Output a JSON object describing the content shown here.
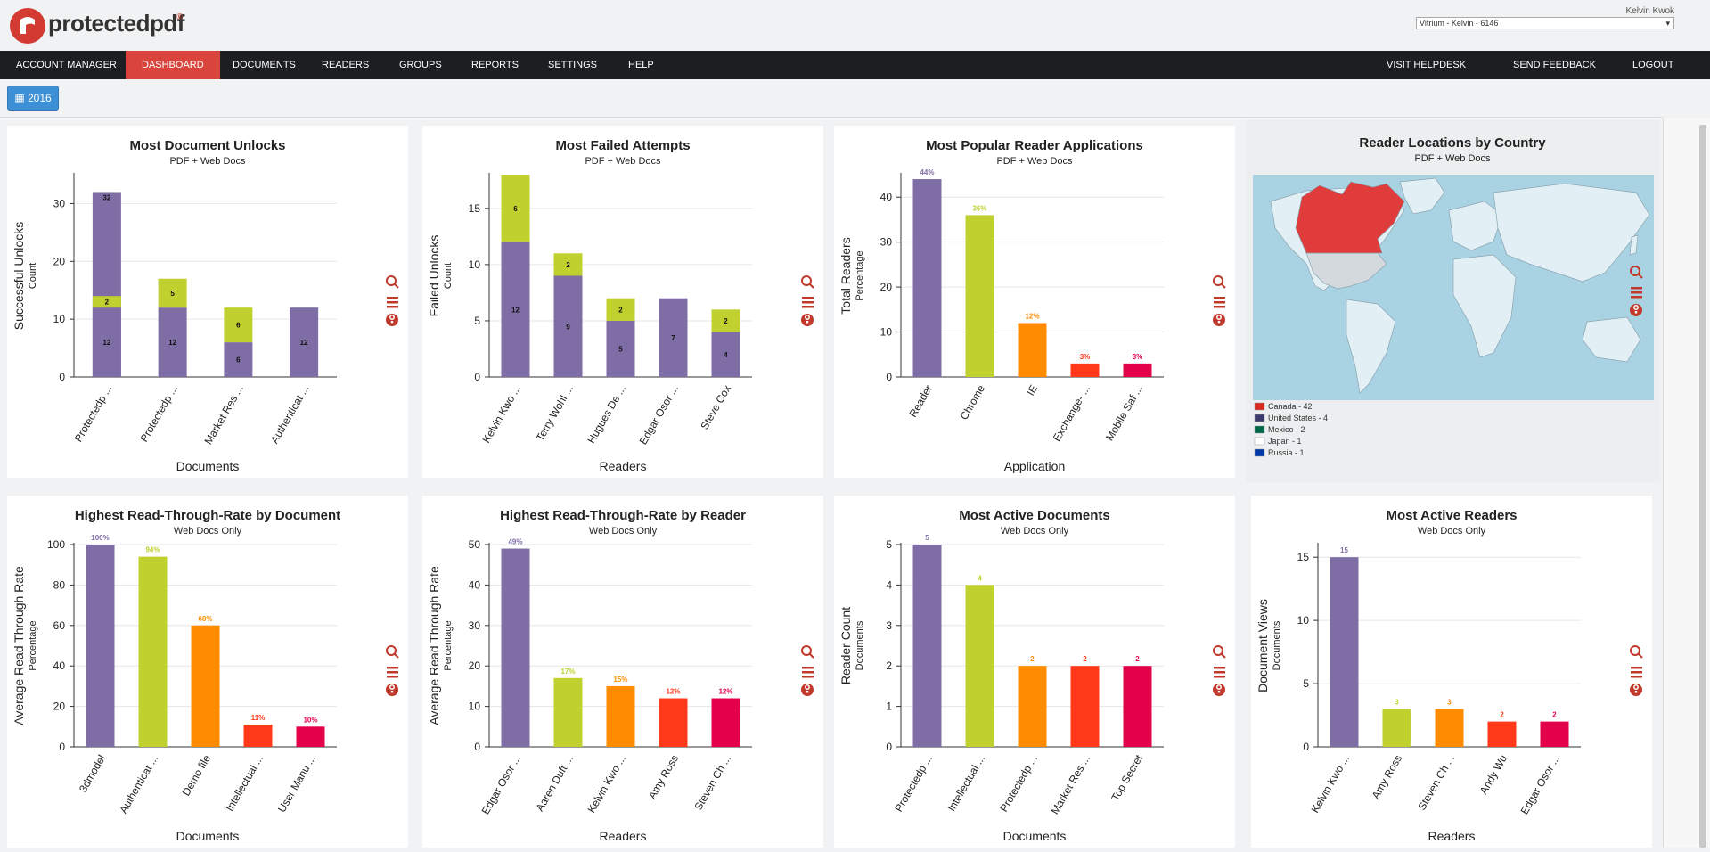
{
  "header": {
    "logo": "protectedpdf",
    "logo_mark": "®",
    "user": "Kelvin Kwok",
    "account": "Vitrium - Kelvin - 6146"
  },
  "nav": [
    "ACCOUNT MANAGER",
    "DASHBOARD",
    "DOCUMENTS",
    "READERS",
    "GROUPS",
    "REPORTS",
    "SETTINGS",
    "HELP"
  ],
  "nav_active": 1,
  "nav_right": [
    "VISIT HELPDESK",
    "SEND FEEDBACK",
    "LOGOUT"
  ],
  "year_button": "2016",
  "map": {
    "title": "Reader Locations by Country",
    "subtitle": "PDF + Web Docs",
    "legend": [
      "Canada - 42",
      "United States - 4",
      "Mexico - 2",
      "Japan - 1",
      "Russia - 1"
    ]
  },
  "chart_data": [
    {
      "type": "bar",
      "stacked": true,
      "title": "Most Document Unlocks",
      "subtitle": "PDF + Web Docs",
      "y_label": "Successful Unlocks",
      "y_sublabel": "Count",
      "x_label": "Documents",
      "categories": [
        "Protectedp ...",
        "Protectedp ...",
        "Market Res ...",
        "Authenticat ..."
      ],
      "series": [
        {
          "color": "#7f6ea6",
          "stack": false,
          "values": [
            32,
            null,
            null,
            null
          ]
        },
        {
          "color": "#7f6ea6",
          "values": [
            12,
            12,
            6,
            12
          ]
        },
        {
          "color": "#bfd02f",
          "values": [
            2,
            5,
            6,
            null
          ]
        }
      ],
      "ylim": [
        0,
        35
      ],
      "yticks": [
        0,
        10,
        20,
        30
      ],
      "grid": true
    },
    {
      "type": "bar",
      "stacked": true,
      "title": "Most Failed Attempts",
      "subtitle": "PDF + Web Docs",
      "y_label": "Failed Unlocks",
      "y_sublabel": "Count",
      "x_label": "Readers",
      "categories": [
        "Kelvin Kwo ...",
        "Terry Wohl ...",
        "Hugues De ...",
        "Edgar Osor ...",
        "Steve Cox"
      ],
      "series": [
        {
          "color": "#7f6ea6",
          "values": [
            12,
            9,
            5,
            7,
            4
          ]
        },
        {
          "color": "#bfd02f",
          "values": [
            6,
            2,
            2,
            null,
            2
          ]
        }
      ],
      "ylim": [
        0,
        18
      ],
      "yticks": [
        0,
        5,
        10,
        15
      ],
      "grid": true
    },
    {
      "type": "bar",
      "title": "Most Popular Reader Applications",
      "subtitle": "PDF + Web Docs",
      "y_label": "Total Readers",
      "y_sublabel": "Percentage",
      "x_label": "Application",
      "categories": [
        "Reader",
        "Chrome",
        "IE",
        "Exchange- ...",
        "Mobile Saf ..."
      ],
      "values": [
        44,
        36,
        12,
        3,
        3
      ],
      "value_labels": [
        "44%",
        "36%",
        "12%",
        "3%",
        "3%"
      ],
      "colors": [
        "#7f6ea6",
        "#bfd02f",
        "#ff8c00",
        "#ff3a1a",
        "#e5004a"
      ],
      "ylim": [
        0,
        45
      ],
      "yticks": [
        0,
        10,
        20,
        30,
        40
      ],
      "grid": true
    },
    {
      "type": "bar",
      "title": "Highest Read-Through-Rate by Document",
      "subtitle": "Web Docs Only",
      "y_label": "Average Read Through Rate",
      "y_sublabel": "Percentage",
      "x_label": "Documents",
      "categories": [
        "3dmodel",
        "Authenticat ...",
        "Demo file",
        "Intellectual ...",
        "User Manu ..."
      ],
      "values": [
        100,
        94,
        60,
        11,
        10
      ],
      "value_labels": [
        "100%",
        "94%",
        "60%",
        "11%",
        "10%"
      ],
      "colors": [
        "#7f6ea6",
        "#bfd02f",
        "#ff8c00",
        "#ff3a1a",
        "#e5004a"
      ],
      "ylim": [
        0,
        100
      ],
      "yticks": [
        0,
        20,
        40,
        60,
        80,
        100
      ],
      "grid": true
    },
    {
      "type": "bar",
      "title": "Highest Read-Through-Rate by Reader",
      "subtitle": "Web Docs Only",
      "y_label": "Average Read Through Rate",
      "y_sublabel": "Percentage",
      "x_label": "Readers",
      "categories": [
        "Edgar Osor ...",
        "Aaren Duft ...",
        "Kelvin Kwo ...",
        "Amy Ross",
        "Steven Ch ..."
      ],
      "values": [
        49,
        17,
        15,
        12,
        12
      ],
      "value_labels": [
        "49%",
        "17%",
        "15%",
        "12%",
        "12%"
      ],
      "colors": [
        "#7f6ea6",
        "#bfd02f",
        "#ff8c00",
        "#ff3a1a",
        "#e5004a"
      ],
      "ylim": [
        0,
        50
      ],
      "yticks": [
        0,
        10,
        20,
        30,
        40,
        50
      ],
      "grid": true
    },
    {
      "type": "bar",
      "title": "Most Active Documents",
      "subtitle": "Web Docs Only",
      "y_label": "Reader Count",
      "y_sublabel": "Documents",
      "x_label": "Documents",
      "categories": [
        "Protectedp ...",
        "Intellectual ...",
        "Protectedp ...",
        "Market Res ...",
        "Top Secret"
      ],
      "values": [
        5,
        4,
        2,
        2,
        2
      ],
      "colors": [
        "#7f6ea6",
        "#bfd02f",
        "#ff8c00",
        "#ff3a1a",
        "#e5004a"
      ],
      "ylim": [
        0,
        5
      ],
      "yticks": [
        0,
        1,
        2,
        3,
        4,
        5
      ],
      "grid": true
    },
    {
      "type": "bar",
      "title": "Most Active Readers",
      "subtitle": "Web Docs Only",
      "y_label": "Document Views",
      "y_sublabel": "Documents",
      "x_label": "Readers",
      "categories": [
        "Kelvin Kwo ...",
        "Amy Ross",
        "Steven Ch ...",
        "Andy Wu",
        "Edgar Osor ..."
      ],
      "values": [
        15,
        3,
        3,
        2,
        2
      ],
      "colors": [
        "#7f6ea6",
        "#bfd02f",
        "#ff8c00",
        "#ff3a1a",
        "#e5004a"
      ],
      "ylim": [
        0,
        16
      ],
      "yticks": [
        0,
        5,
        10,
        15
      ],
      "grid": true
    }
  ]
}
